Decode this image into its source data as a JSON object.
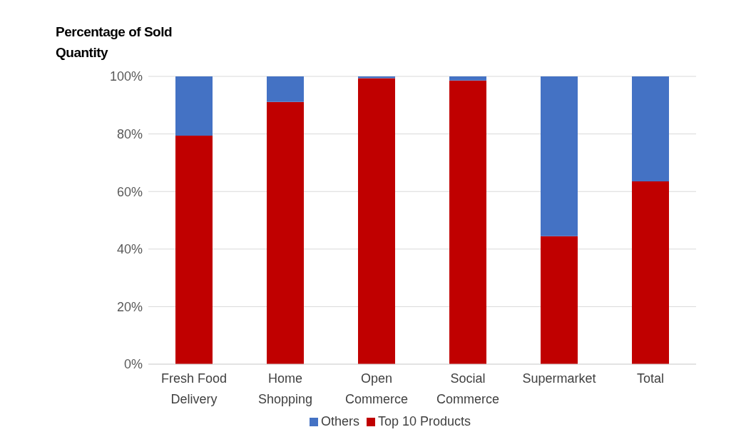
{
  "chart_data": {
    "type": "bar",
    "stacked": true,
    "ylabel": "Percentage of Sold Quantity",
    "categories": [
      "Fresh Food Delivery",
      "Home Shopping",
      "Open Commerce",
      "Social Commerce",
      "Supermarket",
      "Total"
    ],
    "series": [
      {
        "name": "Top 10 Products",
        "color": "#c00000",
        "values": [
          79.4,
          91.1,
          99.4,
          98.6,
          44.5,
          63.5
        ]
      },
      {
        "name": "Others",
        "color": "#4472c4",
        "values": [
          20.6,
          8.9,
          0.6,
          1.4,
          55.5,
          36.5
        ]
      }
    ],
    "ylim": [
      0,
      100
    ],
    "yticks": [
      {
        "value": 0,
        "label": "0%"
      },
      {
        "value": 20,
        "label": "20%"
      },
      {
        "value": 40,
        "label": "40%"
      },
      {
        "value": 60,
        "label": "60%"
      },
      {
        "value": 80,
        "label": "80%"
      },
      {
        "value": 100,
        "label": "100%"
      }
    ],
    "grid": "y",
    "legend": "bottom"
  }
}
